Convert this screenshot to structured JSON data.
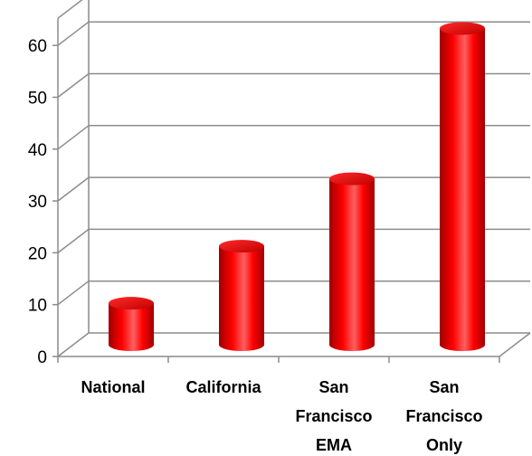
{
  "chart_data": {
    "type": "bar",
    "style": "3d-cylinder",
    "categories": [
      "National",
      "California",
      "San Francisco EMA",
      "San Francisco Only"
    ],
    "category_label_lines": [
      [
        "National"
      ],
      [
        "California"
      ],
      [
        "San",
        "Francisco",
        "EMA"
      ],
      [
        "San",
        "Francisco",
        "Only"
      ]
    ],
    "values": [
      8,
      19,
      32,
      61
    ],
    "ylim": [
      0,
      60
    ],
    "yticks": [
      0,
      10,
      20,
      30,
      40,
      50,
      60
    ],
    "grid": true,
    "title": "",
    "xlabel": "",
    "ylabel": "",
    "colors": {
      "bar": "#ff0000",
      "bar_dark": "#a00000",
      "bar_light": "#ff6060",
      "grid": "#8c8c8c"
    }
  }
}
